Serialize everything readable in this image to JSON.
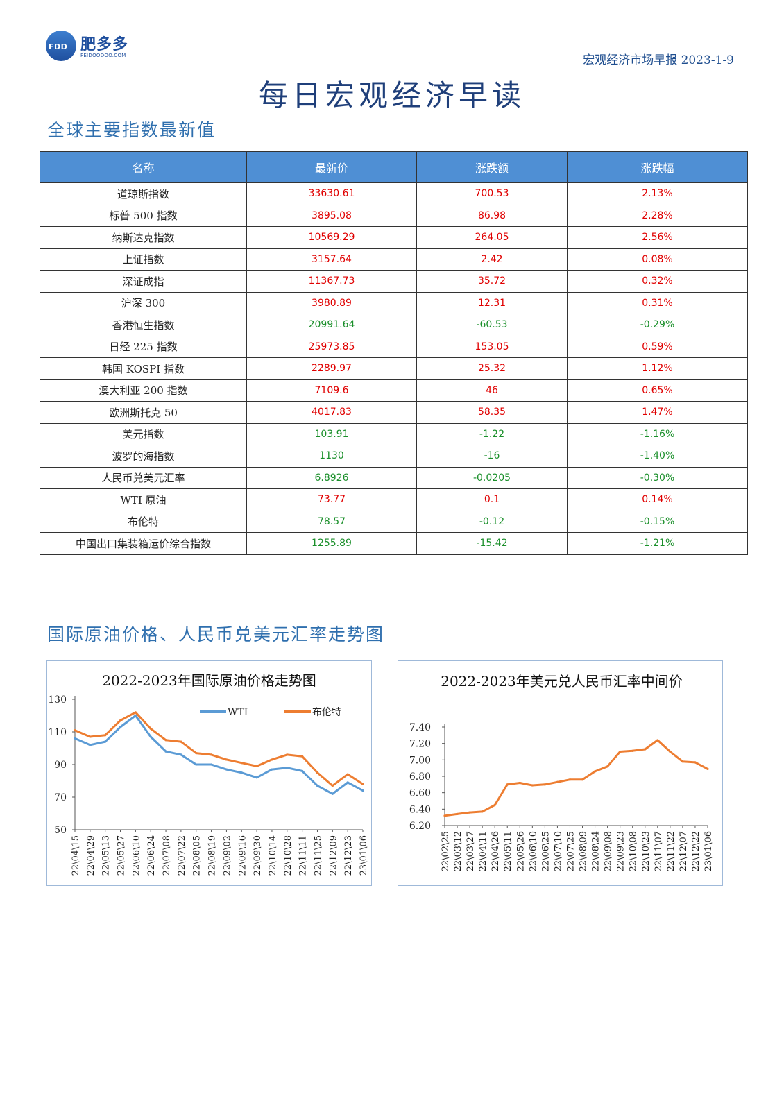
{
  "header": {
    "logo_mark": "FDD",
    "logo_name": "肥多多",
    "logo_sub": "FEIDOODOO.COM",
    "report_name": "宏观经济市场早报 2023-1-9"
  },
  "main_title": "每日宏观经济早读",
  "indices_section": {
    "title": "全球主要指数最新值",
    "columns": [
      "名称",
      "最新价",
      "涨跌额",
      "涨跌幅"
    ],
    "rows": [
      {
        "name": "道琼斯指数",
        "price": "33630.61",
        "change": "700.53",
        "pct": "2.13%",
        "dir": "up"
      },
      {
        "name": "标普 500 指数",
        "price": "3895.08",
        "change": "86.98",
        "pct": "2.28%",
        "dir": "up"
      },
      {
        "name": "纳斯达克指数",
        "price": "10569.29",
        "change": "264.05",
        "pct": "2.56%",
        "dir": "up"
      },
      {
        "name": "上证指数",
        "price": "3157.64",
        "change": "2.42",
        "pct": "0.08%",
        "dir": "up"
      },
      {
        "name": "深证成指",
        "price": "11367.73",
        "change": "35.72",
        "pct": "0.32%",
        "dir": "up"
      },
      {
        "name": "沪深 300",
        "price": "3980.89",
        "change": "12.31",
        "pct": "0.31%",
        "dir": "up"
      },
      {
        "name": "香港恒生指数",
        "price": "20991.64",
        "change": "-60.53",
        "pct": "-0.29%",
        "dir": "down"
      },
      {
        "name": "日经 225 指数",
        "price": "25973.85",
        "change": "153.05",
        "pct": "0.59%",
        "dir": "up"
      },
      {
        "name": "韩国 KOSPI 指数",
        "price": "2289.97",
        "change": "25.32",
        "pct": "1.12%",
        "dir": "up"
      },
      {
        "name": "澳大利亚 200 指数",
        "price": "7109.6",
        "change": "46",
        "pct": "0.65%",
        "dir": "up"
      },
      {
        "name": "欧洲斯托克 50",
        "price": "4017.83",
        "change": "58.35",
        "pct": "1.47%",
        "dir": "up"
      },
      {
        "name": "美元指数",
        "price": "103.91",
        "change": "-1.22",
        "pct": "-1.16%",
        "dir": "down"
      },
      {
        "name": "波罗的海指数",
        "price": "1130",
        "change": "-16",
        "pct": "-1.40%",
        "dir": "down"
      },
      {
        "name": "人民币兑美元汇率",
        "price": "6.8926",
        "change": "-0.0205",
        "pct": "-0.30%",
        "dir": "down"
      },
      {
        "name": "WTI 原油",
        "price": "73.77",
        "change": "0.1",
        "pct": "0.14%",
        "dir": "up"
      },
      {
        "name": "布伦特",
        "price": "78.57",
        "change": "-0.12",
        "pct": "-0.15%",
        "dir": "down"
      },
      {
        "name": "中国出口集装箱运价综合指数",
        "price": "1255.89",
        "change": "-15.42",
        "pct": "-1.21%",
        "dir": "down"
      }
    ]
  },
  "charts_section": {
    "title": "国际原油价格、人民币兑美元汇率走势图"
  },
  "colors": {
    "up": "#e00000",
    "down": "#1a8f2a",
    "header_bg": "#4f8fd4",
    "wti": "#5b9bd5",
    "brent": "#ed7d31"
  },
  "chart_data": [
    {
      "type": "line",
      "title": "2022-2023年国际原油价格走势图",
      "x": [
        "22\\04\\15",
        "22\\04\\29",
        "22\\05\\13",
        "22\\05\\27",
        "22\\06\\10",
        "22\\06\\24",
        "22\\07\\08",
        "22\\07\\22",
        "22\\08\\05",
        "22\\08\\19",
        "22\\09\\02",
        "22\\09\\16",
        "22\\09\\30",
        "22\\10\\14",
        "22\\10\\28",
        "22\\11\\11",
        "22\\11\\25",
        "22\\12\\09",
        "22\\12\\23",
        "23\\01\\06"
      ],
      "ylim": [
        50,
        130
      ],
      "yticks": [
        50,
        70,
        90,
        110,
        130
      ],
      "legend": "top-right",
      "series": [
        {
          "name": "WTI",
          "color": "#5b9bd5",
          "values": [
            106,
            102,
            104,
            113,
            120,
            107,
            98,
            96,
            90,
            90,
            87,
            85,
            82,
            87,
            88,
            86,
            77,
            72,
            79,
            74
          ]
        },
        {
          "name": "布伦特",
          "color": "#ed7d31",
          "values": [
            111,
            107,
            108,
            117,
            122,
            112,
            105,
            104,
            97,
            96,
            93,
            91,
            89,
            93,
            96,
            95,
            85,
            77,
            84,
            78
          ]
        }
      ]
    },
    {
      "type": "line",
      "title": "2022-2023年美元兑人民币汇率中间价",
      "x": [
        "22\\02\\25",
        "22\\03\\12",
        "22\\03\\27",
        "22\\04\\11",
        "22\\04\\26",
        "22\\05\\11",
        "22\\05\\26",
        "22\\06\\10",
        "22\\06\\25",
        "22\\07\\10",
        "22\\07\\25",
        "22\\08\\09",
        "22\\08\\24",
        "22\\09\\08",
        "22\\09\\23",
        "22\\10\\08",
        "22\\10\\23",
        "22\\11\\07",
        "22\\11\\22",
        "22\\12\\07",
        "22\\12\\22",
        "23\\01\\06"
      ],
      "ylim": [
        6.2,
        7.4
      ],
      "yticks": [
        6.2,
        6.4,
        6.6,
        6.8,
        7.0,
        7.2,
        7.4
      ],
      "series": [
        {
          "name": "",
          "color": "#ed7d31",
          "values": [
            6.32,
            6.34,
            6.36,
            6.37,
            6.45,
            6.7,
            6.72,
            6.69,
            6.7,
            6.73,
            6.76,
            6.76,
            6.86,
            6.92,
            7.1,
            7.11,
            7.13,
            7.24,
            7.1,
            6.98,
            6.97,
            6.89
          ]
        }
      ]
    }
  ]
}
